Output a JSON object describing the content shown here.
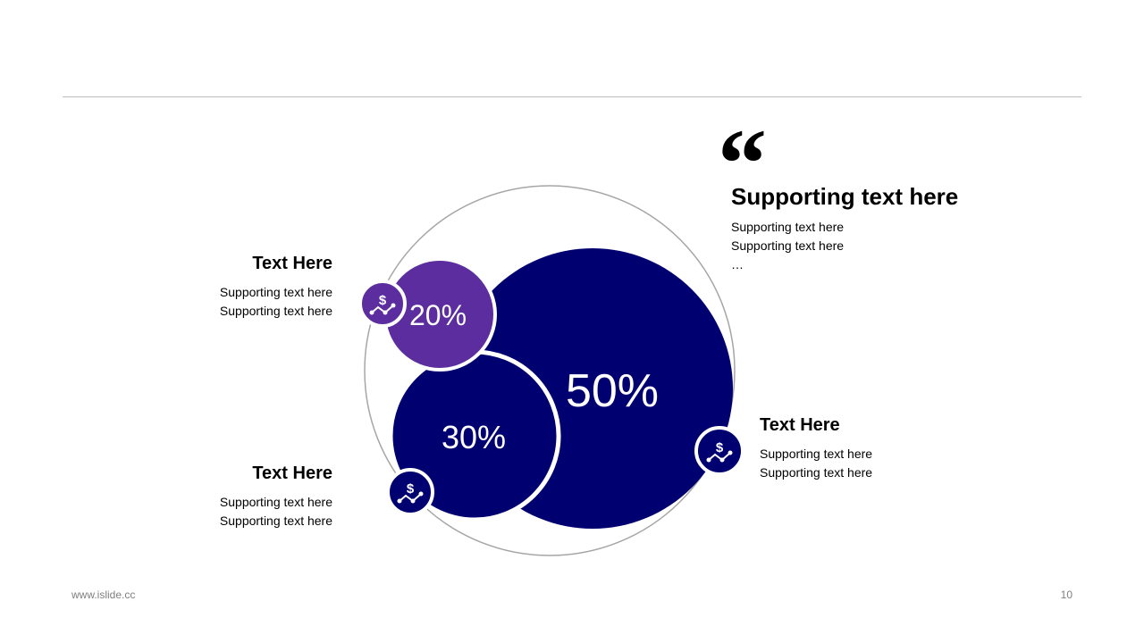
{
  "colors": {
    "navy": "#000070",
    "purple": "#5c2d9e",
    "outline": "#a6a6a6"
  },
  "diagram": {
    "segments": [
      {
        "label": "50%",
        "value": 50,
        "color": "#000070"
      },
      {
        "label": "30%",
        "value": 30,
        "color": "#000070"
      },
      {
        "label": "20%",
        "value": 20,
        "color": "#5c2d9e"
      }
    ],
    "icon": "dollar-trend-icon"
  },
  "callouts": {
    "top_left": {
      "title": "Text Here",
      "lines": [
        "Supporting text here",
        "Supporting text here"
      ]
    },
    "bottom_left": {
      "title": "Text Here",
      "lines": [
        "Supporting text here",
        "Supporting text here"
      ]
    },
    "right": {
      "title": "Text Here",
      "lines": [
        "Supporting text here",
        "Supporting text here"
      ]
    }
  },
  "quote": {
    "mark": "“",
    "title": "Supporting text here",
    "lines": [
      "Supporting text here",
      "Supporting text here",
      "…"
    ]
  },
  "footer": {
    "website": "www.islide.cc",
    "page_number": "10"
  }
}
